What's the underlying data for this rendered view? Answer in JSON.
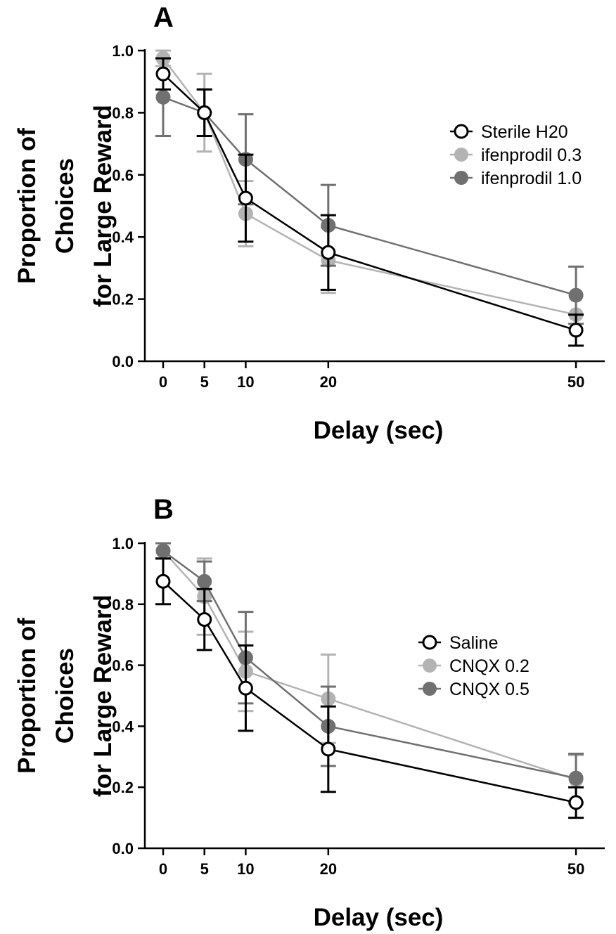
{
  "chart_data": [
    {
      "type": "line",
      "panel_label": "A",
      "ylabel_lines": [
        "Proportion of",
        "Choices",
        "for Large Reward"
      ],
      "xlabel": "Delay (sec)",
      "x": [
        0,
        5,
        10,
        20,
        50
      ],
      "x_tick_labels": [
        "0",
        "5",
        "10",
        "20",
        "50"
      ],
      "ylim": [
        0,
        1.0
      ],
      "y_ticks": [
        0.0,
        0.2,
        0.4,
        0.6,
        0.8,
        1.0
      ],
      "y_tick_labels": [
        "0.0",
        "0.2",
        "0.4",
        "0.6",
        "0.8",
        "1.0"
      ],
      "legend_position": "right",
      "series": [
        {
          "name": "Sterile H20",
          "color": "#000000",
          "marker": "open-circle",
          "values": [
            0.925,
            0.8,
            0.525,
            0.35,
            0.1
          ],
          "errors": [
            0.05,
            0.075,
            0.14,
            0.12,
            0.05
          ]
        },
        {
          "name": "ifenprodil 0.3",
          "color": "#b3b3b3",
          "marker": "filled-circle",
          "values": [
            0.975,
            0.8,
            0.475,
            0.325,
            0.15
          ],
          "errors": [
            0.025,
            0.125,
            0.105,
            0.105,
            0.0
          ]
        },
        {
          "name": "ifenprodil 1.0",
          "color": "#707070",
          "marker": "filled-circle",
          "values": [
            0.85,
            0.8,
            0.65,
            0.4375,
            0.2125
          ],
          "errors": [
            0.125,
            0.075,
            0.145,
            0.13,
            0.092
          ]
        }
      ]
    },
    {
      "type": "line",
      "panel_label": "B",
      "ylabel_lines": [
        "Proportion of",
        "Choices",
        "for Large Reward"
      ],
      "xlabel": "Delay (sec)",
      "x": [
        0,
        5,
        10,
        20,
        50
      ],
      "x_tick_labels": [
        "0",
        "5",
        "10",
        "20",
        "50"
      ],
      "ylim": [
        0,
        1.0
      ],
      "y_ticks": [
        0.0,
        0.2,
        0.4,
        0.6,
        0.8,
        1.0
      ],
      "y_tick_labels": [
        "0.0",
        "0.2",
        "0.4",
        "0.6",
        "0.8",
        "1.0"
      ],
      "legend_position": "right",
      "series": [
        {
          "name": "Saline",
          "color": "#000000",
          "marker": "open-circle",
          "values": [
            0.875,
            0.75,
            0.525,
            0.325,
            0.15
          ],
          "errors": [
            0.075,
            0.1,
            0.14,
            0.14,
            0.05
          ]
        },
        {
          "name": "CNQX 0.2",
          "color": "#b3b3b3",
          "marker": "filled-circle",
          "values": [
            0.975,
            0.825,
            0.58,
            0.49,
            0.225
          ],
          "errors": [
            0.025,
            0.125,
            0.13,
            0.145,
            0.08
          ]
        },
        {
          "name": "CNQX 0.5",
          "color": "#707070",
          "marker": "filled-circle",
          "values": [
            0.975,
            0.875,
            0.625,
            0.4,
            0.23
          ],
          "errors": [
            0.025,
            0.065,
            0.15,
            0.13,
            0.08
          ]
        }
      ]
    }
  ]
}
